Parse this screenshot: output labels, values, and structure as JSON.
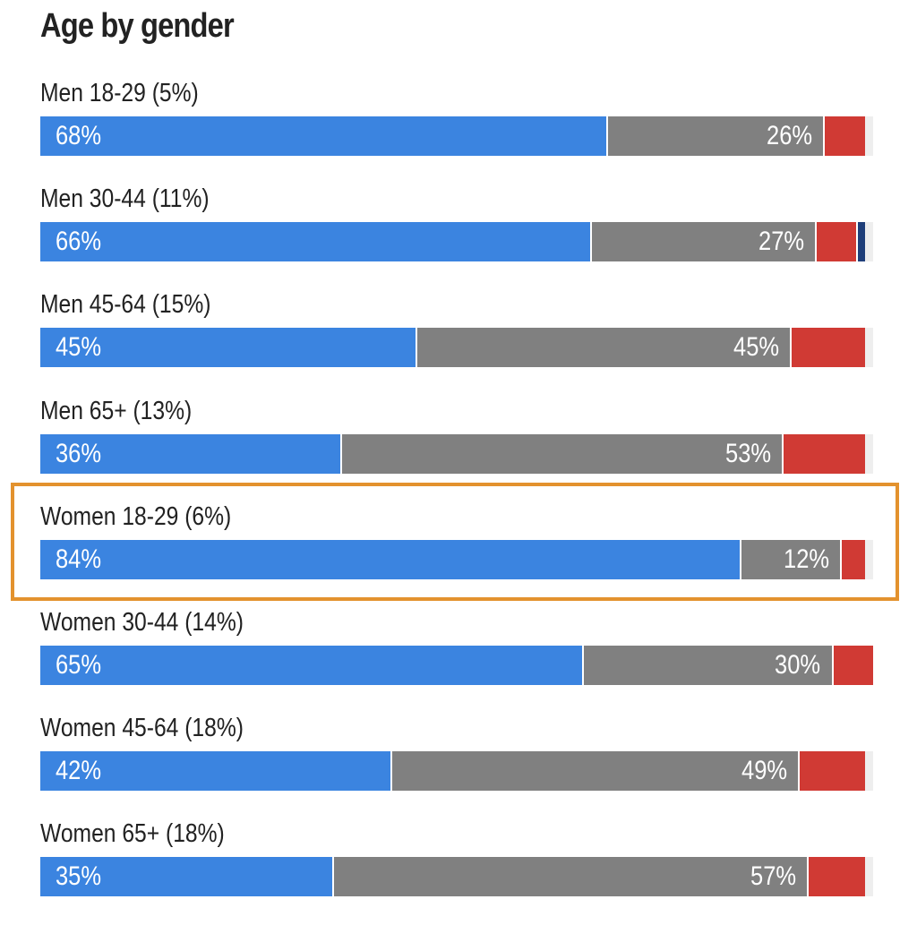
{
  "colors": {
    "dem": "#3b84e0",
    "rep": "#808080",
    "other": "#d03a34",
    "other2": "#1f3f7a",
    "highlight": "#e3922e"
  },
  "chart_data": {
    "type": "bar",
    "orientation": "horizontal",
    "stacked": true,
    "title": "Age by gender",
    "xlim": [
      0,
      100
    ],
    "highlighted_category": "Women 18-29 (6%)",
    "categories": [
      "Men 18-29 (5%)",
      "Men 30-44 (11%)",
      "Men 45-64 (15%)",
      "Men 65+ (13%)",
      "Women 18-29 (6%)",
      "Women 30-44 (14%)",
      "Women 45-64 (18%)",
      "Women 65+ (18%)"
    ],
    "series": [
      {
        "name": "blue",
        "color": "#3b84e0",
        "values": [
          68,
          66,
          45,
          36,
          84,
          65,
          42,
          35
        ],
        "labels": [
          "68%",
          "66%",
          "45%",
          "36%",
          "84%",
          "65%",
          "42%",
          "35%"
        ]
      },
      {
        "name": "gray",
        "color": "#808080",
        "values": [
          26,
          27,
          45,
          53,
          12,
          30,
          49,
          57
        ],
        "labels": [
          "26%",
          "27%",
          "45%",
          "53%",
          "12%",
          "30%",
          "49%",
          "57%"
        ]
      },
      {
        "name": "red",
        "color": "#d03a34",
        "values": [
          5,
          5,
          9,
          10,
          3,
          5,
          8,
          7
        ],
        "labels": [
          "",
          "",
          "",
          "",
          "",
          "",
          "",
          ""
        ]
      },
      {
        "name": "dark-blue",
        "color": "#1f3f7a",
        "values": [
          0,
          1,
          0,
          0,
          0,
          0,
          0,
          0
        ],
        "labels": [
          "",
          "",
          "",
          "",
          "",
          "",
          "",
          ""
        ]
      }
    ]
  }
}
